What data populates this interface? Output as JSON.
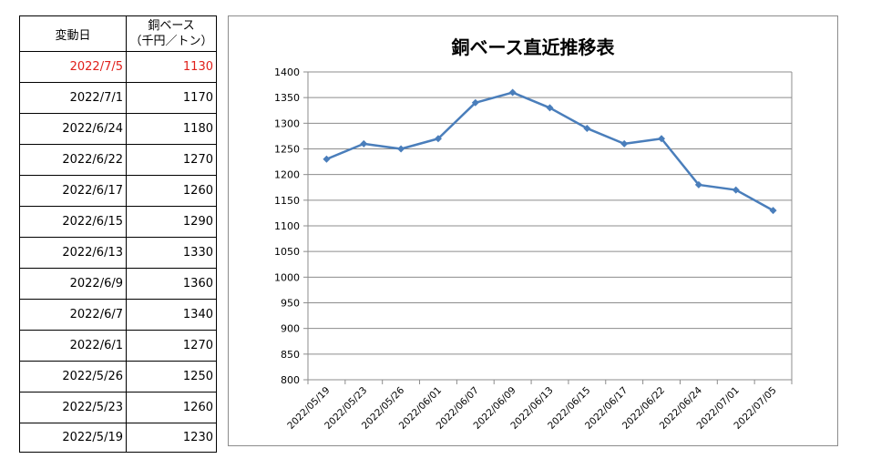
{
  "table": {
    "header": {
      "date": "変動日",
      "value_line1": "銅ベース",
      "value_line2": "（千円／トン）"
    },
    "rows": [
      {
        "date": "2022/7/5",
        "value": "1130",
        "highlight": true
      },
      {
        "date": "2022/7/1",
        "value": "1170",
        "highlight": false
      },
      {
        "date": "2022/6/24",
        "value": "1180",
        "highlight": false
      },
      {
        "date": "2022/6/22",
        "value": "1270",
        "highlight": false
      },
      {
        "date": "2022/6/17",
        "value": "1260",
        "highlight": false
      },
      {
        "date": "2022/6/15",
        "value": "1290",
        "highlight": false
      },
      {
        "date": "2022/6/13",
        "value": "1330",
        "highlight": false
      },
      {
        "date": "2022/6/9",
        "value": "1360",
        "highlight": false
      },
      {
        "date": "2022/6/7",
        "value": "1340",
        "highlight": false
      },
      {
        "date": "2022/6/1",
        "value": "1270",
        "highlight": false
      },
      {
        "date": "2022/5/26",
        "value": "1250",
        "highlight": false
      },
      {
        "date": "2022/5/23",
        "value": "1260",
        "highlight": false
      },
      {
        "date": "2022/5/19",
        "value": "1230",
        "highlight": false
      }
    ],
    "highlight_color": "#e0201b"
  },
  "chart_data": {
    "type": "line",
    "title": "銅ベース直近推移表",
    "xlabel": "",
    "ylabel": "",
    "categories": [
      "2022/05/19",
      "2022/05/23",
      "2022/05/26",
      "2022/06/01",
      "2022/06/07",
      "2022/06/09",
      "2022/06/13",
      "2022/06/15",
      "2022/06/17",
      "2022/06/22",
      "2022/06/24",
      "2022/07/01",
      "2022/07/05"
    ],
    "values": [
      1230,
      1260,
      1250,
      1270,
      1340,
      1360,
      1330,
      1290,
      1260,
      1270,
      1180,
      1170,
      1130
    ],
    "ylim": [
      800,
      1400
    ],
    "yticks": [
      800,
      850,
      900,
      950,
      1000,
      1050,
      1100,
      1150,
      1200,
      1250,
      1300,
      1350,
      1400
    ],
    "grid": true,
    "legend": "none",
    "line_color": "#4a7ebb",
    "marker": "diamond"
  }
}
